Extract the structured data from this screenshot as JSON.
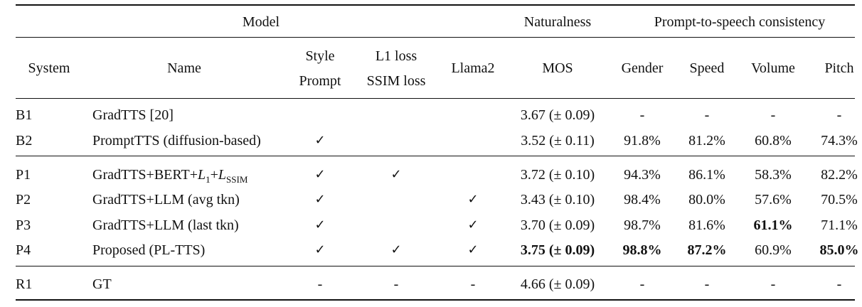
{
  "header": {
    "group_model": "Model",
    "group_naturalness": "Naturalness",
    "group_consistency": "Prompt-to-speech consistency",
    "col_system": "System",
    "col_name": "Name",
    "col_style_1": "Style",
    "col_style_2": "Prompt",
    "col_loss_1": "L1 loss",
    "col_loss_2": "SSIM loss",
    "col_llama": "Llama2",
    "col_mos": "MOS",
    "col_gender": "Gender",
    "col_speed": "Speed",
    "col_volume": "Volume",
    "col_pitch": "Pitch"
  },
  "check_mark": "✓",
  "rows": [
    {
      "system": "B1",
      "name": "GradTTS [20]",
      "style": "",
      "loss": "",
      "llama": "",
      "mos": "3.67 (± 0.09)",
      "gender": "-",
      "speed": "-",
      "volume": "-",
      "pitch": "-"
    },
    {
      "system": "B2",
      "name": "PromptTTS (diffusion-based)",
      "style": "✓",
      "loss": "",
      "llama": "",
      "mos": "3.52 (± 0.11)",
      "gender": "91.8%",
      "speed": "81.2%",
      "volume": "60.8%",
      "pitch": "74.3%"
    },
    {
      "system": "P1",
      "name_prefix": "GradTTS+BERT+",
      "name_l": "L",
      "name_l_sub": "1",
      "name_plus": "+",
      "name_ssim_l": "L",
      "name_ssim_sub": "SSIM",
      "style": "✓",
      "loss": "✓",
      "llama": "",
      "mos": "3.72 (± 0.10)",
      "gender": "94.3%",
      "speed": "86.1%",
      "volume": "58.3%",
      "pitch": "82.2%"
    },
    {
      "system": "P2",
      "name": "GradTTS+LLM (avg tkn)",
      "style": "✓",
      "loss": "",
      "llama": "✓",
      "mos": "3.43 (± 0.10)",
      "gender": "98.4%",
      "speed": "80.0%",
      "volume": "57.6%",
      "pitch": "70.5%"
    },
    {
      "system": "P3",
      "name": "GradTTS+LLM (last tkn)",
      "style": "✓",
      "loss": "",
      "llama": "✓",
      "mos": "3.70 (± 0.09)",
      "gender": "98.7%",
      "speed": "81.6%",
      "volume": "61.1%",
      "pitch": "71.1%"
    },
    {
      "system": "P4",
      "name": "Proposed (PL-TTS)",
      "style": "✓",
      "loss": "✓",
      "llama": "✓",
      "mos": "3.75 (± 0.09)",
      "gender": "98.8%",
      "speed": "87.2%",
      "volume": "60.9%",
      "pitch": "85.0%"
    },
    {
      "system": "R1",
      "name": "GT",
      "style": "-",
      "loss": "-",
      "llama": "-",
      "mos": "4.66 (± 0.09)",
      "gender": "-",
      "speed": "-",
      "volume": "-",
      "pitch": "-"
    }
  ]
}
